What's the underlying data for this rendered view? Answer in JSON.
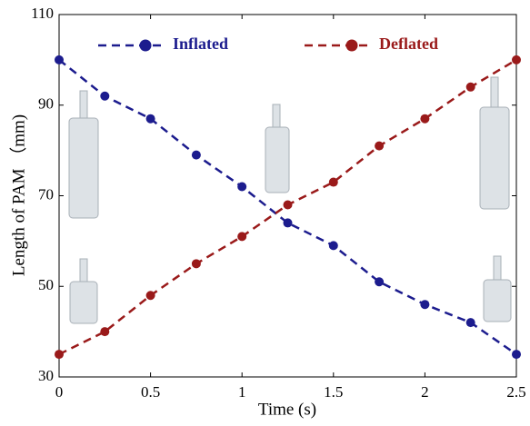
{
  "chart_data": {
    "type": "line",
    "x_label": "Time (s)",
    "y_label": "Length of PAM （mm)",
    "x": [
      0,
      0.25,
      0.5,
      0.75,
      1,
      1.25,
      1.5,
      1.75,
      2,
      2.25,
      2.5
    ],
    "series": [
      {
        "name": "Inflated",
        "color": "#1c1c8e",
        "values": [
          100,
          92,
          87,
          79,
          72,
          64,
          59,
          51,
          46,
          42,
          35
        ]
      },
      {
        "name": "Deflated",
        "color": "#9a1a1a",
        "values": [
          35,
          40,
          48,
          55,
          61,
          68,
          73,
          81,
          87,
          94,
          100
        ]
      }
    ],
    "xlim": [
      0,
      2.5
    ],
    "xticks": [
      0,
      0.5,
      1,
      1.5,
      2,
      2.5
    ],
    "ylim": [
      30,
      110
    ],
    "yticks": [
      30,
      50,
      70,
      90,
      110
    ],
    "grid": false
  }
}
